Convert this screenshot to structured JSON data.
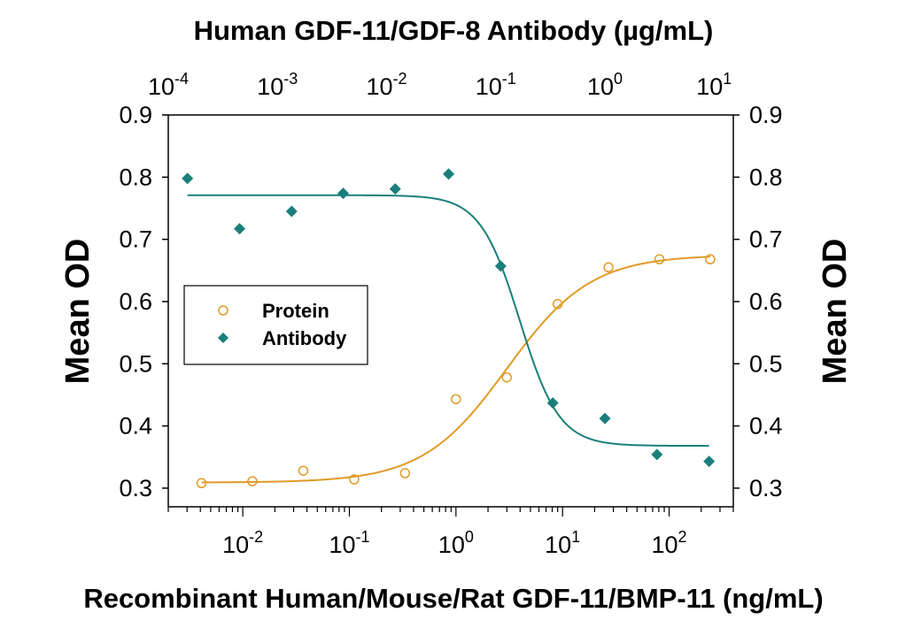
{
  "chart_data": {
    "type": "scatter",
    "title": "Human GDF-11/GDF-8 Antibody (µg/mL)",
    "xlabel": "Recombinant Human/Mouse/Rat GDF-11/BMP-11 (ng/mL)",
    "ylabel_left": "Mean OD",
    "ylabel_right": "Mean OD",
    "x_scale": "log",
    "x_top_scale": "log",
    "xlim": [
      0.002,
      400
    ],
    "x_top_lim": [
      0.0001,
      15
    ],
    "ylim": [
      0.27,
      0.9
    ],
    "y_ticks": [
      "0.3",
      "0.4",
      "0.5",
      "0.6",
      "0.7",
      "0.8",
      "0.9"
    ],
    "y_tick_values": [
      0.3,
      0.4,
      0.5,
      0.6,
      0.7,
      0.8,
      0.9
    ],
    "x_ticks": [
      {
        "value": 0.01,
        "base": "10",
        "exp": "-2"
      },
      {
        "value": 0.1,
        "base": "10",
        "exp": "-1"
      },
      {
        "value": 1,
        "base": "10",
        "exp": "0"
      },
      {
        "value": 10,
        "base": "10",
        "exp": "1"
      },
      {
        "value": 100,
        "base": "10",
        "exp": "2"
      }
    ],
    "x_top_ticks": [
      {
        "value": 0.0001,
        "base": "10",
        "exp": "-4"
      },
      {
        "value": 0.001,
        "base": "10",
        "exp": "-3"
      },
      {
        "value": 0.01,
        "base": "10",
        "exp": "-2"
      },
      {
        "value": 0.1,
        "base": "10",
        "exp": "-1"
      },
      {
        "value": 1,
        "base": "10",
        "exp": "0"
      },
      {
        "value": 10,
        "base": "10",
        "exp": "1"
      }
    ],
    "grid": false,
    "legend_position": "left",
    "series": [
      {
        "name": "Protein",
        "marker": "open-circle",
        "color": "#E09A26",
        "x_axis": "bottom",
        "x": [
          0.0041,
          0.0123,
          0.037,
          0.111,
          0.333,
          1.0,
          3.0,
          9.0,
          27.0,
          81.0,
          243.0
        ],
        "y": [
          0.308,
          0.311,
          0.328,
          0.314,
          0.324,
          0.443,
          0.478,
          0.596,
          0.655,
          0.668,
          0.668
        ],
        "fit": {
          "bottom": 0.309,
          "top": 0.675,
          "ec50": 3.0,
          "hill": 1.1
        }
      },
      {
        "name": "Antibody",
        "marker": "filled-diamond",
        "color": "#1A7F7A",
        "x_axis": "top",
        "x": [
          0.00015,
          0.00045,
          0.00135,
          0.004,
          0.012,
          0.037,
          0.111,
          0.333,
          1.0,
          3.0,
          9.0
        ],
        "y": [
          0.798,
          0.717,
          0.745,
          0.774,
          0.781,
          0.805,
          0.657,
          0.437,
          0.412,
          0.354,
          0.343
        ],
        "fit": {
          "bottom": 0.368,
          "top": 0.771,
          "ec50": 0.166,
          "hill": 2.4
        }
      }
    ]
  }
}
